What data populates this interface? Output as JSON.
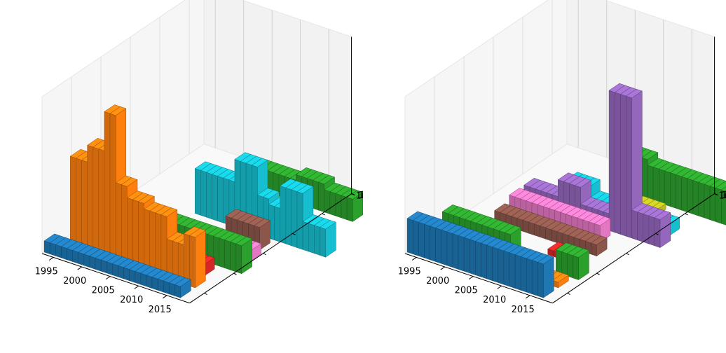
{
  "chart_data": [
    {
      "type": "bar3d",
      "x": {
        "tick_labels": [
          "1995",
          "2000",
          "2005",
          "2010",
          "2015"
        ],
        "range": [
          1993,
          2019
        ]
      },
      "y": {
        "tick_labels": []
      },
      "z": {
        "tick_labels": [
          "10",
          "10",
          "10",
          "10",
          "10"
        ]
      },
      "grid": true,
      "rows": [
        {
          "color": "#1f77b4",
          "x_start": 1993,
          "values": [
            2,
            2,
            2,
            2,
            2,
            2,
            2,
            2,
            2,
            2,
            2,
            2,
            2,
            2,
            2,
            2,
            2,
            2,
            2,
            2,
            2,
            2,
            2,
            2
          ]
        },
        {
          "color": "#ff7f0e",
          "x_start": 1994,
          "values": [
            0,
            16,
            16,
            16,
            19,
            19,
            19,
            26,
            26,
            14,
            14,
            12,
            12,
            12,
            11,
            11,
            11,
            11,
            7,
            7,
            7,
            9,
            9,
            0
          ]
        },
        {
          "color": "#d62728",
          "x_start": 2012,
          "values": [
            2,
            2,
            2,
            2
          ]
        },
        {
          "color": "#2ca02c",
          "x_start": 2004,
          "values": [
            5,
            5,
            5,
            5,
            5,
            5,
            5,
            5,
            5,
            5,
            5,
            5,
            5,
            5,
            5,
            5
          ]
        },
        {
          "color": "#e377c2",
          "x_start": 2004,
          "values": [
            1,
            1,
            1,
            1,
            0,
            0,
            0,
            0,
            0,
            0,
            0,
            2,
            2,
            2,
            2
          ]
        },
        {
          "color": "#8c564b",
          "x_start": 2012,
          "values": [
            4,
            4,
            4,
            4,
            4,
            4
          ]
        },
        {
          "color": "#17becf",
          "x_start": 2004,
          "values": [
            8,
            8,
            8,
            8,
            8,
            8,
            8,
            12,
            12,
            12,
            12,
            7,
            7,
            6,
            6,
            10,
            10,
            10,
            10,
            5,
            5,
            5,
            5
          ]
        },
        {
          "color": "#9467bd",
          "x_start": 2010,
          "values": [
            1,
            1,
            1,
            1,
            1,
            1,
            1,
            1,
            1
          ]
        },
        {
          "color": "#bcbd22",
          "x_start": 2010,
          "values": [
            1,
            1,
            1,
            1,
            1,
            1
          ]
        },
        {
          "color": "#2ca02c",
          "x_start": 2006,
          "values": [
            4,
            4,
            4,
            4,
            4,
            4,
            4,
            4,
            5,
            5,
            5,
            5,
            5,
            4,
            4,
            4,
            4,
            4
          ]
        }
      ]
    },
    {
      "type": "bar3d",
      "x": {
        "tick_labels": [
          "1995",
          "2000",
          "2005",
          "2010",
          "2015"
        ],
        "range": [
          1993,
          2019
        ]
      },
      "y": {
        "tick_labels": []
      },
      "z": {
        "tick_labels": [
          "10",
          "10",
          "10",
          "10",
          "10"
        ]
      },
      "grid": true,
      "rows": [
        {
          "color": "#1f77b4",
          "x_start": 1993,
          "values": [
            6,
            6,
            6,
            6,
            6,
            6,
            6,
            6,
            6,
            6,
            6,
            6,
            6,
            6,
            6,
            6,
            6,
            6,
            6,
            6,
            6,
            6,
            6,
            6
          ]
        },
        {
          "color": "#ff7f0e",
          "x_start": 2012,
          "values": [
            1,
            1,
            1,
            1,
            1
          ]
        },
        {
          "color": "#2ca02c",
          "x_start": 1994,
          "values": [
            4,
            4,
            4,
            4,
            4,
            4,
            4,
            4,
            4,
            4,
            4,
            4,
            0,
            0,
            0,
            0,
            0,
            0,
            0,
            0,
            4,
            4,
            4,
            4
          ]
        },
        {
          "color": "#d62728",
          "x_start": 2010,
          "values": [
            1,
            1,
            1,
            1
          ]
        },
        {
          "color": "#8c564b",
          "x_start": 1998,
          "values": [
            2,
            2,
            2,
            2,
            2,
            2,
            2,
            2,
            2,
            2,
            2,
            2,
            2,
            2,
            2,
            2,
            2,
            2
          ]
        },
        {
          "color": "#e377c2",
          "x_start": 1998,
          "values": [
            3,
            3,
            3,
            3,
            3,
            3,
            3,
            3,
            3,
            3,
            3,
            3,
            3,
            3,
            3,
            3
          ]
        },
        {
          "color": "#9467bd",
          "x_start": 1998,
          "values": [
            3,
            3,
            3,
            3,
            3,
            3,
            6,
            6,
            6,
            6,
            3,
            3,
            3,
            3,
            3,
            25,
            25,
            25,
            25,
            5,
            5,
            5,
            5,
            5
          ]
        },
        {
          "color": "#17becf",
          "x_start": 2003,
          "values": [
            4,
            4,
            4,
            4,
            2,
            2,
            2,
            2,
            2,
            2,
            2,
            2,
            2,
            2,
            2,
            2,
            2,
            2
          ]
        },
        {
          "color": "#bcbd22",
          "x_start": 2010,
          "values": [
            1,
            1,
            1,
            1,
            1,
            1
          ]
        },
        {
          "color": "#2ca02c",
          "x_start": 2006,
          "values": [
            7,
            7,
            7,
            7,
            7,
            7,
            6,
            6,
            6,
            6,
            6,
            6,
            6,
            6,
            6,
            6,
            6,
            6,
            6,
            6
          ]
        }
      ]
    }
  ]
}
